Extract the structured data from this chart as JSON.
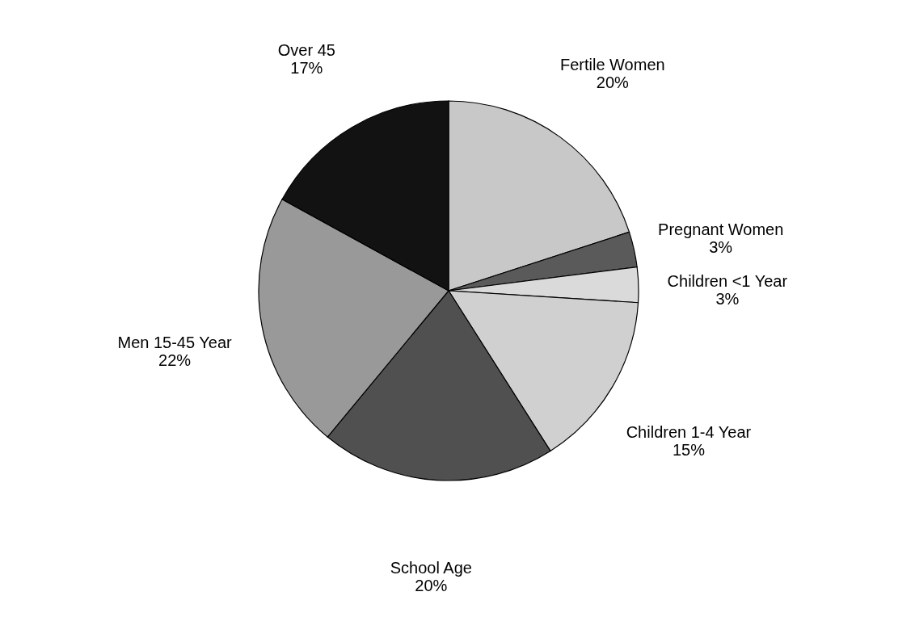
{
  "chart_data": {
    "type": "pie",
    "categories": [
      "Fertile Women",
      "Pregnant Women",
      "Children <1 Year",
      "Children 1-4 Year",
      "School Age",
      "Men 15-45 Year",
      "Over 45"
    ],
    "values": [
      20,
      3,
      3,
      15,
      20,
      22,
      17
    ],
    "value_labels": [
      "20%",
      "3%",
      "3%",
      "15%",
      "20%",
      "22%",
      "17%"
    ],
    "colors": [
      "#c8c8c8",
      "#5a5a5a",
      "#dadada",
      "#d0d0d0",
      "#505050",
      "#999999",
      "#121212"
    ]
  }
}
